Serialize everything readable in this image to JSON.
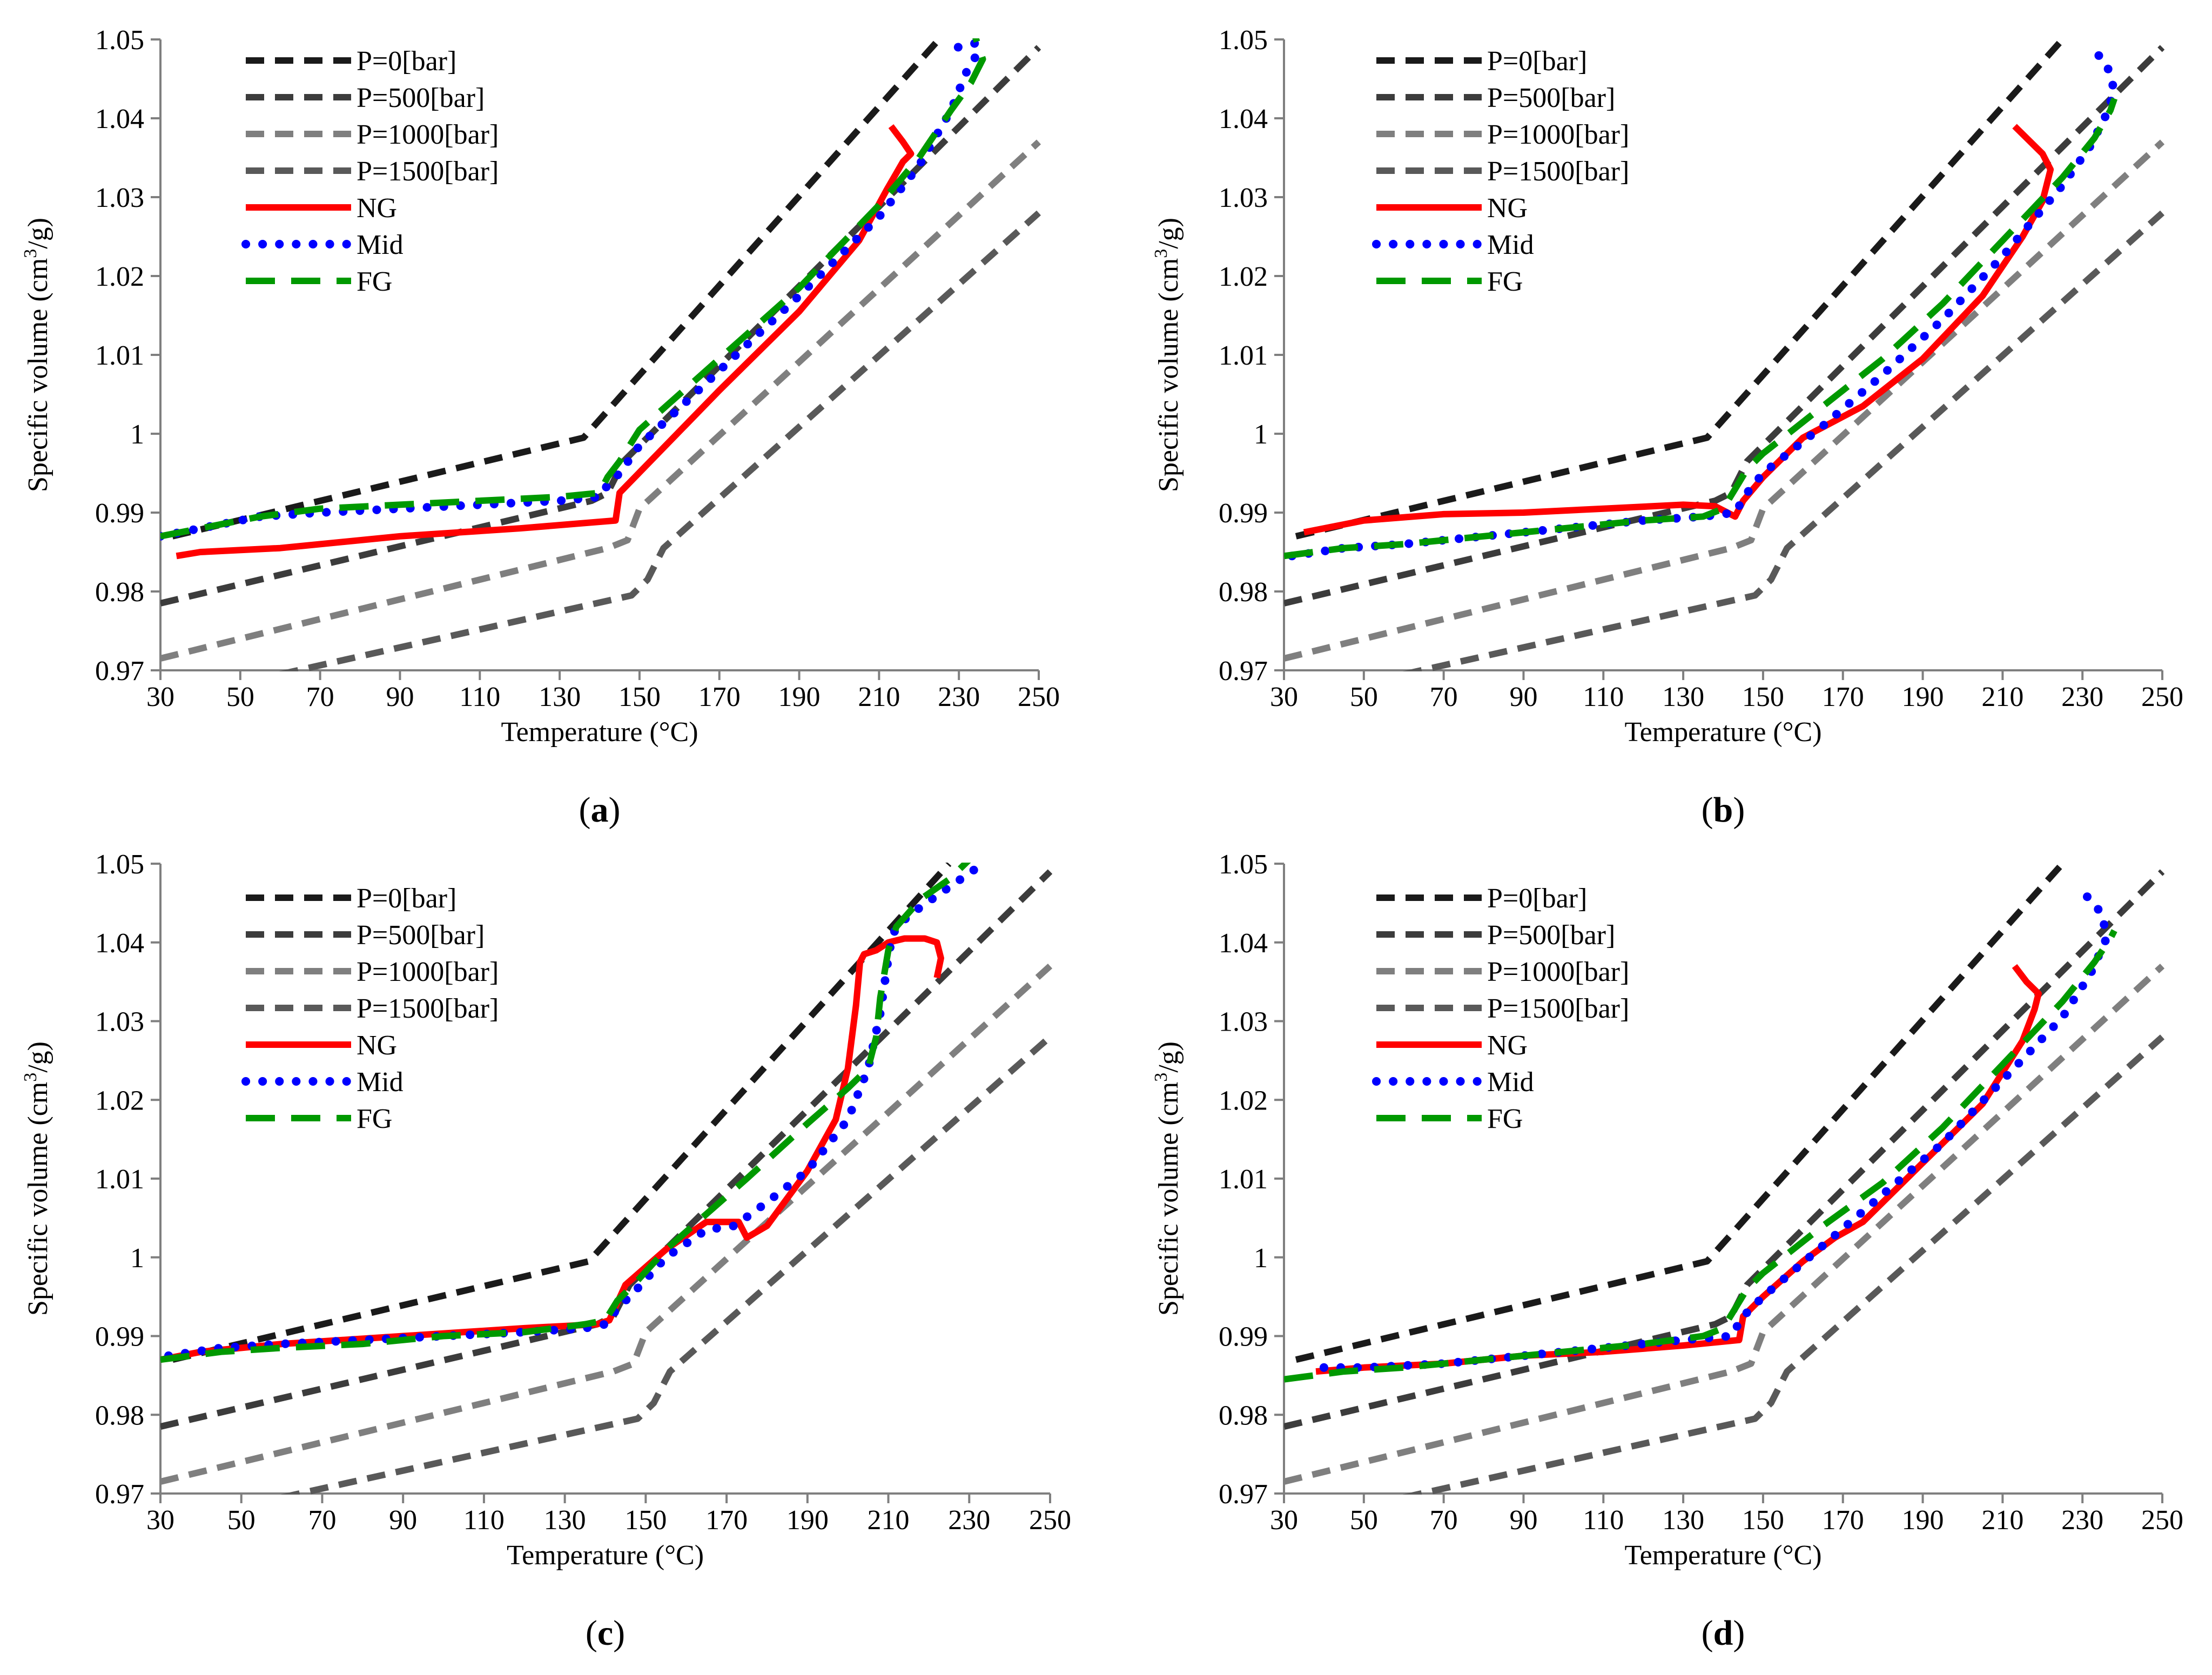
{
  "figure": {
    "xlabel": "Temperature (°C)",
    "ylabel_main": "Specific volume (cm",
    "ylabel_sup": "3",
    "ylabel_end": "/g)",
    "xticks": [
      "30",
      "50",
      "70",
      "90",
      "110",
      "130",
      "150",
      "170",
      "190",
      "210",
      "230",
      "250"
    ],
    "yticks": [
      "1.05",
      "1.04",
      "1.03",
      "1.02",
      "1.01",
      "1",
      "0.99",
      "0.98",
      "0.97"
    ],
    "legend": [
      "P=0[bar]",
      "P=500[bar]",
      "P=1000[bar]",
      "P=1500[bar]",
      "NG",
      "Mid",
      "FG"
    ],
    "colors": {
      "p0": "#1a1a1a",
      "p500": "#3c3c3c",
      "p1000": "#7f7f7f",
      "p1500": "#595959",
      "ng": "#ff0000",
      "mid": "#0000ff",
      "fg": "#009900"
    }
  },
  "chart_data": [
    {
      "type": "line",
      "panel": "a",
      "caption_open": "(",
      "caption_letter": "a",
      "caption_close": ")",
      "title": "",
      "xlabel": "Temperature (°C)",
      "ylabel": "Specific volume (cm3/g)",
      "xlim": [
        30,
        250
      ],
      "ylim": [
        0.97,
        1.05
      ],
      "series": [
        {
          "name": "P=0[bar]",
          "x": [
            33,
            136,
            225
          ],
          "y": [
            0.987,
            0.9995,
            1.05
          ]
        },
        {
          "name": "P=500[bar]",
          "x": [
            30,
            138,
            142,
            146,
            250
          ],
          "y": [
            0.9785,
            0.9915,
            0.9925,
            0.9965,
            1.049
          ]
        },
        {
          "name": "P=1000[bar]",
          "x": [
            30,
            142,
            147,
            150,
            250
          ],
          "y": [
            0.9715,
            0.9855,
            0.9865,
            0.9905,
            1.037
          ]
        },
        {
          "name": "P=1500[bar]",
          "x": [
            60,
            148,
            152,
            156,
            250
          ],
          "y": [
            0.9695,
            0.9795,
            0.9815,
            0.9855,
            1.028
          ]
        },
        {
          "name": "NG",
          "x": [
            34,
            40,
            60,
            90,
            120,
            144,
            145,
            170,
            190,
            205,
            212,
            216,
            218,
            216,
            213
          ],
          "y": [
            0.9845,
            0.985,
            0.9855,
            0.987,
            0.988,
            0.989,
            0.9925,
            1.0055,
            1.0155,
            1.0245,
            1.031,
            1.0345,
            1.0355,
            1.037,
            1.039
          ]
        },
        {
          "name": "Mid",
          "x": [
            30,
            40,
            55,
            70,
            90,
            110,
            130,
            140,
            142,
            145,
            150,
            170,
            190,
            210,
            220,
            228,
            232,
            235,
            234,
            228
          ],
          "y": [
            0.987,
            0.988,
            0.9895,
            0.99,
            0.9905,
            0.991,
            0.9915,
            0.992,
            0.9935,
            0.995,
            0.9985,
            1.008,
            1.0175,
            1.0275,
            1.034,
            1.041,
            1.046,
            1.0485,
            1.0495,
            1.0488
          ]
        },
        {
          "name": "FG",
          "x": [
            30,
            40,
            55,
            70,
            90,
            110,
            130,
            140,
            142,
            145,
            150,
            170,
            190,
            210,
            220,
            228,
            233,
            236,
            234
          ],
          "y": [
            0.987,
            0.988,
            0.9895,
            0.9905,
            0.991,
            0.9915,
            0.992,
            0.9925,
            0.9945,
            0.9965,
            1.0005,
            1.0095,
            1.0185,
            1.029,
            1.035,
            1.041,
            1.0445,
            1.0475,
            1.0505
          ]
        }
      ]
    },
    {
      "type": "line",
      "panel": "b",
      "caption_open": "(",
      "caption_letter": "b",
      "caption_close": ")",
      "title": "",
      "xlabel": "Temperature (°C)",
      "ylabel": "Specific volume (cm3/g)",
      "xlim": [
        30,
        250
      ],
      "ylim": [
        0.97,
        1.05
      ],
      "series": [
        {
          "name": "P=0[bar]",
          "x": [
            33,
            136,
            225
          ],
          "y": [
            0.987,
            0.9995,
            1.05
          ]
        },
        {
          "name": "P=500[bar]",
          "x": [
            30,
            138,
            142,
            146,
            250
          ],
          "y": [
            0.9785,
            0.9915,
            0.9925,
            0.9965,
            1.049
          ]
        },
        {
          "name": "P=1000[bar]",
          "x": [
            30,
            142,
            147,
            150,
            250
          ],
          "y": [
            0.9715,
            0.9855,
            0.9865,
            0.9905,
            1.037
          ]
        },
        {
          "name": "P=1500[bar]",
          "x": [
            60,
            148,
            152,
            156,
            250
          ],
          "y": [
            0.9695,
            0.9795,
            0.9815,
            0.9855,
            1.028
          ]
        },
        {
          "name": "NG",
          "x": [
            35,
            50,
            70,
            90,
            110,
            130,
            138,
            143,
            145,
            150,
            160,
            175,
            190,
            205,
            215,
            220,
            222,
            220,
            213
          ],
          "y": [
            0.9875,
            0.989,
            0.9898,
            0.99,
            0.9905,
            0.991,
            0.9908,
            0.9895,
            0.9915,
            0.9945,
            0.9995,
            1.0035,
            1.0095,
            1.0175,
            1.025,
            1.0295,
            1.0335,
            1.0355,
            1.039
          ]
        },
        {
          "name": "Mid",
          "x": [
            32,
            45,
            60,
            80,
            100,
            120,
            135,
            143,
            146,
            150,
            165,
            180,
            195,
            210,
            225,
            232,
            236,
            238,
            236,
            232
          ],
          "y": [
            0.9845,
            0.9855,
            0.986,
            0.987,
            0.988,
            0.989,
            0.9895,
            0.99,
            0.9925,
            0.995,
            1.001,
            1.0075,
            1.0145,
            1.0225,
            1.0315,
            1.0365,
            1.0405,
            1.0435,
            1.047,
            1.049
          ]
        },
        {
          "name": "FG",
          "x": [
            30,
            45,
            60,
            80,
            100,
            120,
            135,
            140,
            143,
            146,
            150,
            165,
            180,
            195,
            210,
            225,
            233,
            237,
            238
          ],
          "y": [
            0.9845,
            0.9855,
            0.986,
            0.987,
            0.988,
            0.989,
            0.9895,
            0.9905,
            0.993,
            0.9955,
            0.9975,
            1.0035,
            1.0095,
            1.0165,
            1.0245,
            1.0325,
            1.0375,
            1.041,
            1.0425
          ]
        }
      ]
    },
    {
      "type": "line",
      "panel": "c",
      "caption_open": "(",
      "caption_letter": "c",
      "caption_close": ")",
      "title": "",
      "xlabel": "Temperature (°C)",
      "ylabel": "Specific volume (cm3/g)",
      "xlim": [
        30,
        250
      ],
      "ylim": [
        0.97,
        1.05
      ],
      "series": [
        {
          "name": "P=0[bar]",
          "x": [
            33,
            136,
            225
          ],
          "y": [
            0.987,
            0.9995,
            1.05
          ]
        },
        {
          "name": "P=500[bar]",
          "x": [
            30,
            138,
            142,
            146,
            250
          ],
          "y": [
            0.9785,
            0.9915,
            0.9925,
            0.9965,
            1.049
          ]
        },
        {
          "name": "P=1000[bar]",
          "x": [
            30,
            142,
            147,
            150,
            250
          ],
          "y": [
            0.9715,
            0.9855,
            0.9865,
            0.9905,
            1.037
          ]
        },
        {
          "name": "P=1500[bar]",
          "x": [
            60,
            148,
            152,
            156,
            250
          ],
          "y": [
            0.9695,
            0.9795,
            0.9815,
            0.9855,
            1.028
          ]
        },
        {
          "name": "NG",
          "x": [
            30,
            40,
            60,
            90,
            120,
            138,
            141,
            145,
            155,
            165,
            173,
            175,
            180,
            190,
            197,
            200,
            202,
            203,
            204,
            207,
            210,
            214,
            219,
            222,
            223,
            222
          ],
          "y": [
            0.987,
            0.988,
            0.989,
            0.99,
            0.991,
            0.9915,
            0.992,
            0.9965,
            1.001,
            1.0045,
            1.0045,
            1.0025,
            1.004,
            1.011,
            1.0175,
            1.024,
            1.032,
            1.0375,
            1.0385,
            1.039,
            1.04,
            1.0405,
            1.0405,
            1.04,
            1.038,
            1.0355
          ]
        },
        {
          "name": "Mid",
          "x": [
            32,
            45,
            60,
            80,
            100,
            120,
            135,
            140,
            143,
            147,
            155,
            165,
            172,
            180,
            190,
            200,
            205,
            208,
            210,
            211,
            213,
            218,
            225,
            232,
            234
          ],
          "y": [
            0.9875,
            0.9885,
            0.989,
            0.9895,
            0.99,
            0.9905,
            0.991,
            0.9915,
            0.9935,
            0.9955,
            1.0,
            1.0035,
            1.004,
            1.007,
            1.011,
            1.0175,
            1.024,
            1.031,
            1.038,
            1.041,
            1.0425,
            1.0445,
            1.047,
            1.0495,
            1.0505
          ]
        },
        {
          "name": "FG",
          "x": [
            30,
            45,
            60,
            80,
            100,
            120,
            135,
            140,
            143,
            147,
            155,
            165,
            175,
            190,
            200,
            205,
            207,
            208,
            210,
            212,
            218,
            225,
            230
          ],
          "y": [
            0.987,
            0.988,
            0.9885,
            0.989,
            0.99,
            0.9905,
            0.9915,
            0.992,
            0.9945,
            0.9965,
            1.001,
            1.0055,
            1.01,
            1.017,
            1.0215,
            1.024,
            1.028,
            1.033,
            1.039,
            1.042,
            1.0455,
            1.048,
            1.0505
          ]
        }
      ]
    },
    {
      "type": "line",
      "panel": "d",
      "caption_open": "(",
      "caption_letter": "d",
      "caption_close": ")",
      "title": "",
      "xlabel": "Temperature (°C)",
      "ylabel": "Specific volume (cm3/g)",
      "xlim": [
        30,
        250
      ],
      "ylim": [
        0.97,
        1.05
      ],
      "series": [
        {
          "name": "P=0[bar]",
          "x": [
            33,
            136,
            225
          ],
          "y": [
            0.987,
            0.9995,
            1.05
          ]
        },
        {
          "name": "P=500[bar]",
          "x": [
            30,
            138,
            142,
            146,
            250
          ],
          "y": [
            0.9785,
            0.9915,
            0.9925,
            0.9965,
            1.049
          ]
        },
        {
          "name": "P=1000[bar]",
          "x": [
            30,
            142,
            147,
            150,
            250
          ],
          "y": [
            0.9715,
            0.9855,
            0.9865,
            0.9905,
            1.037
          ]
        },
        {
          "name": "P=1500[bar]",
          "x": [
            60,
            148,
            152,
            156,
            250
          ],
          "y": [
            0.9695,
            0.9795,
            0.9815,
            0.9855,
            1.028
          ]
        },
        {
          "name": "NG",
          "x": [
            38,
            50,
            70,
            90,
            110,
            130,
            144,
            145,
            150,
            160,
            168,
            175,
            190,
            205,
            215,
            218,
            219,
            216,
            213
          ],
          "y": [
            0.9855,
            0.986,
            0.9865,
            0.9875,
            0.988,
            0.9888,
            0.9895,
            0.9925,
            0.995,
            0.9995,
            1.0025,
            1.0045,
            1.012,
            1.0195,
            1.0275,
            1.0315,
            1.0335,
            1.035,
            1.037
          ]
        },
        {
          "name": "Mid",
          "x": [
            40,
            50,
            70,
            90,
            110,
            130,
            142,
            145,
            150,
            165,
            180,
            195,
            210,
            225,
            232,
            236,
            235,
            232,
            228
          ],
          "y": [
            0.986,
            0.986,
            0.9865,
            0.9875,
            0.9885,
            0.9895,
            0.99,
            0.9925,
            0.995,
            1.0015,
            1.008,
            1.0145,
            1.0225,
            1.0305,
            1.036,
            1.0405,
            1.0435,
            1.0455,
            1.047
          ]
        },
        {
          "name": "FG",
          "x": [
            30,
            45,
            60,
            80,
            100,
            120,
            135,
            140,
            143,
            146,
            150,
            165,
            180,
            195,
            210,
            225,
            233,
            237,
            238
          ],
          "y": [
            0.9845,
            0.9855,
            0.986,
            0.987,
            0.988,
            0.989,
            0.99,
            0.991,
            0.9935,
            0.996,
            0.998,
            1.004,
            1.0095,
            1.0165,
            1.0245,
            1.0325,
            1.0375,
            1.0405,
            1.0415
          ]
        }
      ]
    }
  ]
}
